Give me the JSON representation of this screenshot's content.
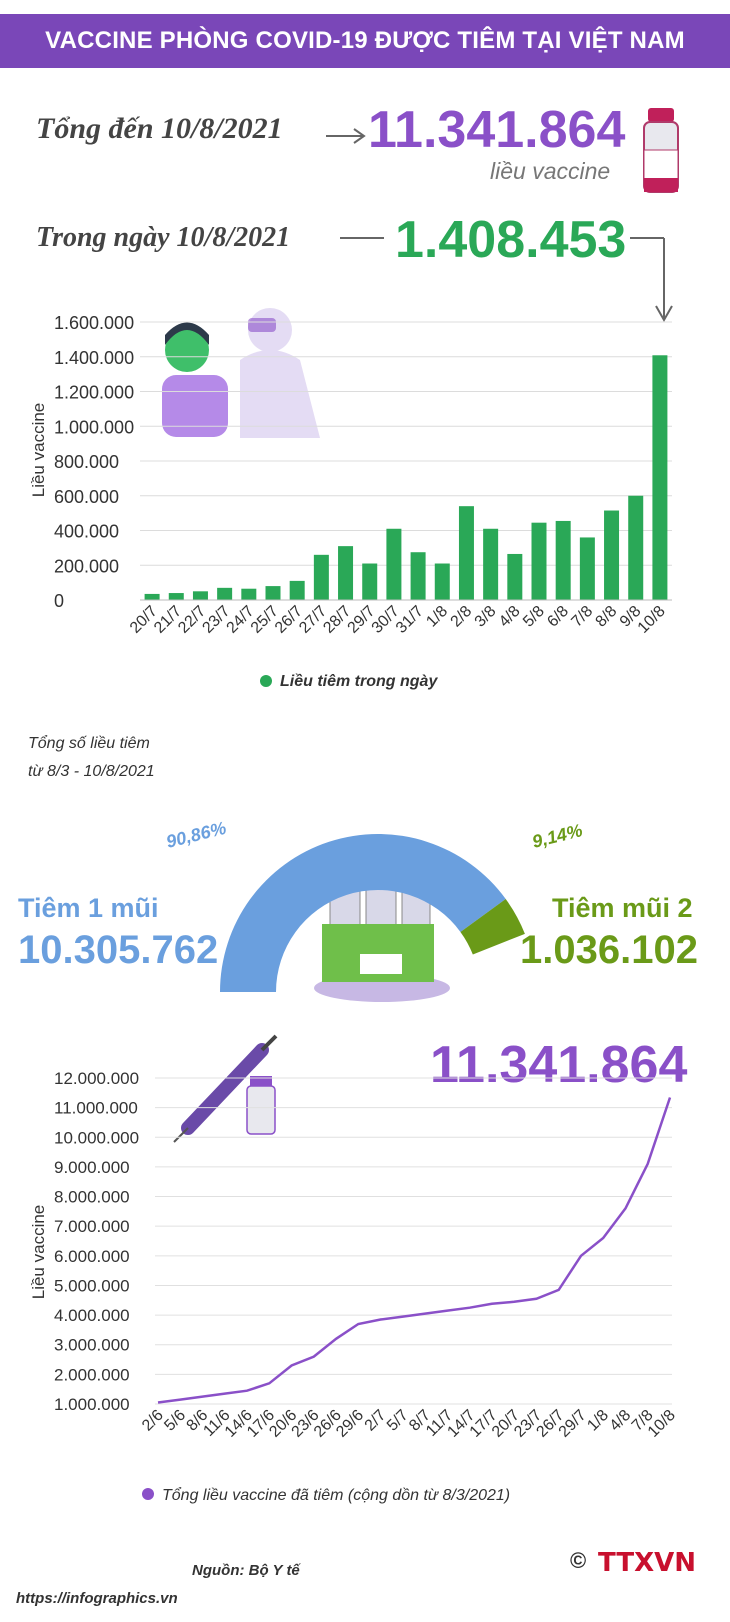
{
  "title": "VACCINE PHÒNG COVID-19 ĐƯỢC TIÊM TẠI VIỆT NAM",
  "summary": {
    "total_label": "Tổng đến 10/8/2021",
    "total_value": "11.341.864",
    "total_unit": "liều vaccine",
    "daily_label": "Trong ngày 10/8/2021",
    "daily_value": "1.408.453"
  },
  "colors": {
    "accent_purple": "#8a50c8",
    "bar_green": "#2aa857",
    "dose1_blue": "#6a9fde",
    "dose2_green": "#6a9a18"
  },
  "chart_data": [
    {
      "type": "bar",
      "ylabel": "Liều vaccine",
      "ylim": [
        0,
        1600000
      ],
      "yticks": [
        "0",
        "200.000",
        "400.000",
        "600.000",
        "800.000",
        "1.000.000",
        "1.200.000",
        "1.400.000",
        "1.600.000"
      ],
      "categories": [
        "20/7",
        "21/7",
        "22/7",
        "23/7",
        "24/7",
        "25/7",
        "26/7",
        "27/7",
        "28/7",
        "29/7",
        "30/7",
        "31/7",
        "1/8",
        "2/8",
        "3/8",
        "4/8",
        "5/8",
        "6/8",
        "7/8",
        "8/8",
        "9/8",
        "10/8"
      ],
      "series": [
        {
          "name": "Liều tiêm trong ngày",
          "values": [
            35000,
            40000,
            50000,
            70000,
            65000,
            80000,
            110000,
            260000,
            310000,
            210000,
            410000,
            275000,
            210000,
            540000,
            410000,
            265000,
            445000,
            455000,
            360000,
            515000,
            600000,
            1408453
          ]
        }
      ],
      "legend": "bottom"
    },
    {
      "type": "pie",
      "title": "Tổng số liều tiêm\ntừ 8/3 - 10/8/2021",
      "slices": [
        {
          "label": "Tiêm 1 mũi",
          "value": 10305762,
          "display": "10.305.762",
          "percent": "90,86%"
        },
        {
          "label": "Tiêm mũi 2",
          "value": 1036102,
          "display": "1.036.102",
          "percent": "9,14%"
        }
      ]
    },
    {
      "type": "line",
      "ylabel": "Liều vaccine",
      "ylim": [
        1000000,
        12000000
      ],
      "yticks": [
        "1.000.000",
        "2.000.000",
        "3.000.000",
        "4.000.000",
        "5.000.000",
        "6.000.000",
        "7.000.000",
        "8.000.000",
        "9.000.000",
        "10.000.000",
        "11.000.000",
        "12.000.000"
      ],
      "xticks": [
        "2/6",
        "5/6",
        "8/6",
        "11/6",
        "14/6",
        "17/6",
        "20/6",
        "23/6",
        "26/6",
        "29/6",
        "2/7",
        "5/7",
        "8/7",
        "11/7",
        "14/7",
        "17/7",
        "20/7",
        "23/7",
        "26/7",
        "29/7",
        "1/8",
        "4/8",
        "7/8",
        "10/8"
      ],
      "highlight_value": "11.341.864",
      "series": [
        {
          "name": "Tổng liều vaccine đã tiêm (cộng dồn từ 8/3/2021)",
          "values": [
            1050000,
            1150000,
            1250000,
            1350000,
            1450000,
            1700000,
            2300000,
            2600000,
            3200000,
            3700000,
            3850000,
            3950000,
            4050000,
            4150000,
            4250000,
            4380000,
            4450000,
            4550000,
            4850000,
            6000000,
            6600000,
            7600000,
            9100000,
            11341864
          ]
        }
      ],
      "legend": "bottom"
    }
  ],
  "footer": {
    "source": "Nguồn: Bộ Y tế",
    "url": "https://infographics.vn",
    "logo_text": "TTXVN",
    "copyright": "©"
  }
}
